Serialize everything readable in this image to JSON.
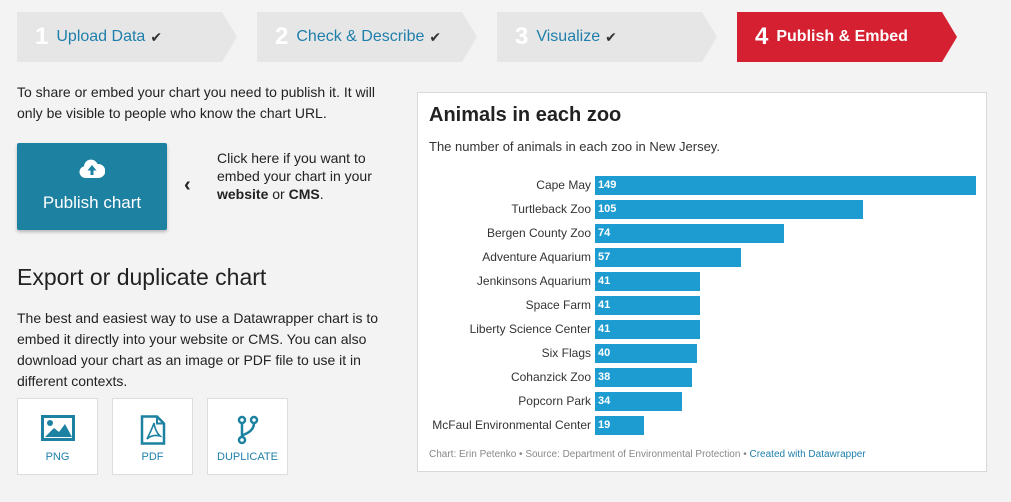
{
  "steps": [
    {
      "num": "1",
      "label": "Upload Data",
      "done": true
    },
    {
      "num": "2",
      "label": "Check & Describe",
      "done": true
    },
    {
      "num": "3",
      "label": "Visualize",
      "done": true
    },
    {
      "num": "4",
      "label": "Publish & Embed",
      "done": false,
      "active": true
    }
  ],
  "publish": {
    "intro": "To share or embed your chart you need to publish it. It will only be visible to people who know the chart URL.",
    "button_label": "Publish chart",
    "button_icon": "cloud-upload-icon",
    "hint_prefix": "Click here if you want to embed your chart in your ",
    "hint_bold1": "website",
    "hint_mid": " or ",
    "hint_bold2": "CMS",
    "hint_suffix": "."
  },
  "export": {
    "title": "Export or duplicate chart",
    "description": "The best and easiest way to use a Datawrapper chart is to embed it directly into your website or CMS. You can also download your chart as an image or PDF file to use it in different contexts.",
    "buttons": [
      {
        "label": "PNG",
        "icon": "image-icon"
      },
      {
        "label": "PDF",
        "icon": "pdf-icon"
      },
      {
        "label": "DUPLICATE",
        "icon": "fork-icon"
      }
    ]
  },
  "colors": {
    "accent_blue": "#1d81a2",
    "bar_blue": "#1d9cd1",
    "active_step": "#d42031",
    "done_step": "#e6e6e6"
  },
  "chart_data": {
    "type": "bar",
    "title": "Animals in each zoo",
    "subtitle": "The number of animals in each zoo in New Jersey.",
    "categories": [
      "Cape May",
      "Turtleback Zoo",
      "Bergen County Zoo",
      "Adventure Aquarium",
      "Jenkinsons Aquarium",
      "Space Farm",
      "Liberty Science Center",
      "Six Flags",
      "Cohanzick Zoo",
      "Popcorn Park",
      "McFaul Environmental Center"
    ],
    "values": [
      149,
      105,
      74,
      57,
      41,
      41,
      41,
      40,
      38,
      34,
      19
    ],
    "xlim": [
      0,
      149
    ],
    "orientation": "horizontal",
    "footer_text": "Chart: Erin Petenko • Source: Department of Environmental Protection • ",
    "footer_link": "Created with Datawrapper"
  }
}
